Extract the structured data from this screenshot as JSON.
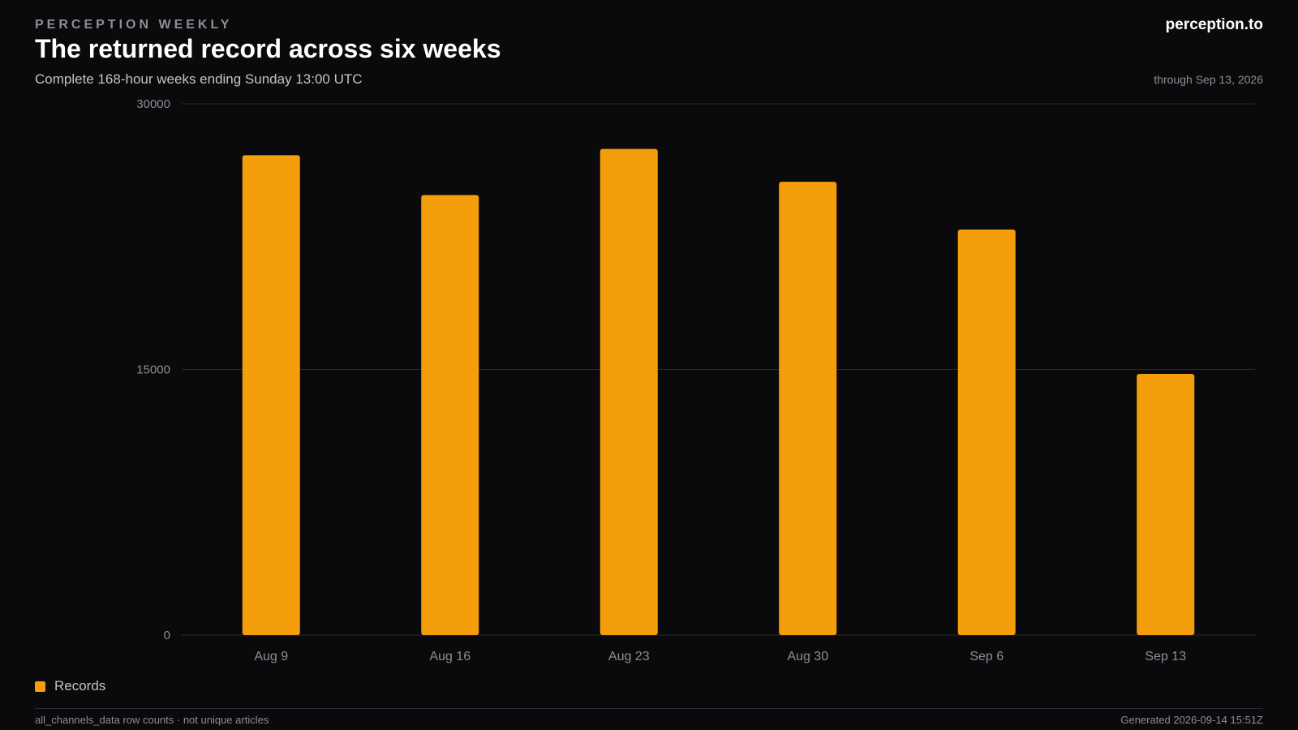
{
  "header": {
    "kicker": "PERCEPTION WEEKLY",
    "brand": "perception.to",
    "title": "The returned record across six weeks",
    "subtitle": "Complete 168-hour weeks ending Sunday 13:00 UTC",
    "through": "through Sep 13, 2026"
  },
  "legend": {
    "label": "Records"
  },
  "footer": {
    "left": "all_channels_data row counts · not unique articles",
    "right": "Generated 2026-09-14 15:51Z"
  },
  "colors": {
    "background": "#0a0a0c",
    "bar": "#f59e0b",
    "grid": "#2a2a2e",
    "tick_text": "#8e8e93"
  },
  "chart_data": {
    "type": "bar",
    "title": "The returned record across six weeks",
    "xlabel": "",
    "ylabel": "",
    "categories": [
      "Aug 9",
      "Aug 16",
      "Aug 23",
      "Aug 30",
      "Sep 6",
      "Sep 13"
    ],
    "series": [
      {
        "name": "Records",
        "values": [
          27100,
          24850,
          27450,
          25600,
          22900,
          14750
        ]
      }
    ],
    "ylim": [
      0,
      30000
    ],
    "yticks": [
      "0",
      "15000",
      "30000"
    ],
    "grid": true,
    "legend_position": "bottom-left"
  }
}
